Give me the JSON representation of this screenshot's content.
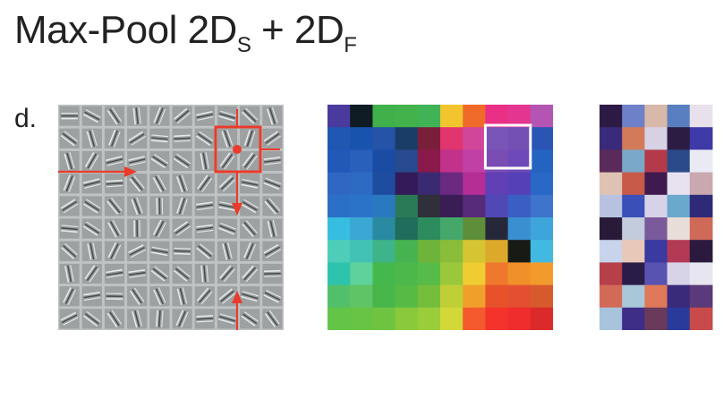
{
  "title": {
    "main": "Max-Pool 2D",
    "sub1": "S",
    "plus": " + 2D",
    "sub2": "F"
  },
  "panel_label": "d.",
  "panels": {
    "filters": {
      "grid": 10,
      "cell_color": "#9da1a1",
      "gap_color": "#bfc3c3",
      "annotation_color": "#ea3b2b"
    },
    "colormap": {
      "grid": 10,
      "highlight_color": "#ffffff",
      "colors": [
        [
          "#4b3a9e",
          "#0f1c24",
          "#3fb04a",
          "#43b24a",
          "#3fb356",
          "#f2c52e",
          "#f06a2a",
          "#ea2f86",
          "#e43690",
          "#b455b3"
        ],
        [
          "#1f57b3",
          "#1854ae",
          "#2453a8",
          "#1a3d67",
          "#7a1f3a",
          "#e0356e",
          "#d2469a",
          "#7a55b8",
          "#7450b5",
          "#2a55b4"
        ],
        [
          "#2258b8",
          "#2860bb",
          "#1a4ca4",
          "#284a8e",
          "#8a1a4a",
          "#c2318c",
          "#c040a6",
          "#7a4db5",
          "#6e4ab8",
          "#2563c0"
        ],
        [
          "#2f67c2",
          "#2d6bc3",
          "#1e4c9f",
          "#351a5a",
          "#3a2a72",
          "#6a2a80",
          "#b42e95",
          "#6040b4",
          "#5540b8",
          "#2a68c8"
        ],
        [
          "#2c6fc6",
          "#2b73c8",
          "#2a78c0",
          "#2a7a58",
          "#30303a",
          "#3a1d54",
          "#582a7a",
          "#5148b5",
          "#3b5ec4",
          "#3e74cb"
        ],
        [
          "#36bde0",
          "#3aa7d4",
          "#2a8aa2",
          "#1f6d5a",
          "#2d8c5e",
          "#45a86a",
          "#5e8e3a",
          "#26283a",
          "#3a8fd0",
          "#3ea5dc"
        ],
        [
          "#4ecdb8",
          "#42c2b4",
          "#3fb389",
          "#45b350",
          "#6fb43a",
          "#8abd3a",
          "#d7c433",
          "#dca92b",
          "#181a16",
          "#42b9e0"
        ],
        [
          "#2ec3ad",
          "#5fd19a",
          "#45b84d",
          "#4cb84c",
          "#56bb48",
          "#9ac83a",
          "#f0cc33",
          "#f0782d",
          "#f09028",
          "#f29b2c"
        ],
        [
          "#52c06b",
          "#5fc466",
          "#48b64a",
          "#56bb45",
          "#75be3c",
          "#c1cf36",
          "#f0a02a",
          "#e8522a",
          "#e3502f",
          "#d65a2c"
        ],
        [
          "#63c547",
          "#67c444",
          "#6ec440",
          "#8ac93c",
          "#99cd3a",
          "#d2d838",
          "#f45a2e",
          "#f4342c",
          "#ef2d2d",
          "#dc2a2a"
        ]
      ]
    },
    "randmap": {
      "colors": [
        [
          "#2c1a44",
          "#6e80c8",
          "#d8b8a8",
          "#5a7fc0",
          "#e8e0ea"
        ],
        [
          "#3a2a7a",
          "#d27a5a",
          "#d6d2e4",
          "#2c1c44",
          "#3e3aa8"
        ],
        [
          "#5a2a5a",
          "#7aa8c8",
          "#b33a4a",
          "#2a4a8a",
          "#eaeaf4"
        ],
        [
          "#dfc2b4",
          "#c85a4a",
          "#3e1a4e",
          "#e8e2f0",
          "#c9a8b0"
        ],
        [
          "#b8c2e0",
          "#3a4fb8",
          "#d8d2e8",
          "#6aa8cc",
          "#2e2a78"
        ],
        [
          "#2a1a3a",
          "#c2ccdc",
          "#7a5a9a",
          "#e9ddd8",
          "#d06a58"
        ],
        [
          "#c7d4ec",
          "#e8c8b8",
          "#3a3aa0",
          "#b33a54",
          "#2c1a3e"
        ],
        [
          "#b6404a",
          "#2a1c48",
          "#5852b0",
          "#d8d4e8",
          "#e7e6f0"
        ],
        [
          "#d36a58",
          "#a8c8d8",
          "#e0785a",
          "#3a2a7a",
          "#5a3a7a"
        ],
        [
          "#a8c4dc",
          "#3e2e88",
          "#6a3a5a",
          "#2a3a9a",
          "#c84a4a"
        ]
      ]
    }
  }
}
